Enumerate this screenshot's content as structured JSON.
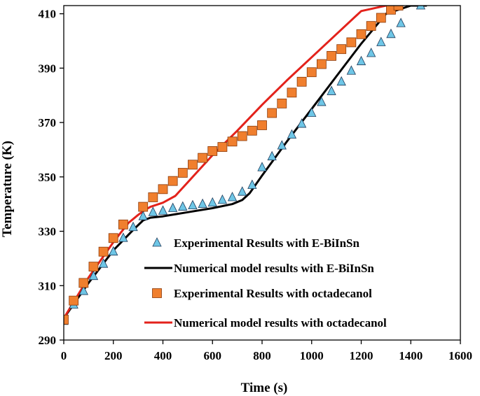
{
  "chart_data": {
    "type": "line",
    "title": "",
    "xlabel": "Time (s)",
    "ylabel": "Temperature (K)",
    "xlim": [
      0,
      1600
    ],
    "ylim": [
      290,
      413
    ],
    "xticks": [
      0,
      200,
      400,
      600,
      800,
      1000,
      1200,
      1400,
      1600
    ],
    "yticks": [
      290,
      310,
      330,
      350,
      370,
      390,
      410
    ],
    "grid": false,
    "legend_position": "center-right inside plot",
    "series": [
      {
        "name": "Experimental Results with E-BiInSn",
        "kind": "scatter",
        "marker": "triangle",
        "color": "#6EC6E6",
        "x": [
          0,
          40,
          80,
          120,
          160,
          200,
          240,
          280,
          320,
          360,
          400,
          440,
          480,
          520,
          560,
          600,
          640,
          680,
          720,
          760,
          800,
          840,
          880,
          920,
          960,
          1000,
          1040,
          1080,
          1120,
          1160,
          1200,
          1240,
          1280,
          1320,
          1360,
          1440
        ],
        "y": [
          297,
          303,
          308,
          313.5,
          318,
          322.5,
          327.5,
          331.5,
          335.5,
          337,
          337.5,
          338.5,
          339,
          339.5,
          340,
          340.5,
          341.5,
          342.5,
          344.5,
          347,
          353.5,
          357.5,
          361.5,
          365.5,
          369.5,
          373.5,
          377.5,
          381.5,
          385,
          389,
          392.5,
          395.5,
          399.5,
          402.5,
          406.5,
          413
        ]
      },
      {
        "name": "Numerical model results with E-BiInSn",
        "kind": "line",
        "color": "#000000",
        "x": [
          0,
          100,
          200,
          280,
          320,
          350,
          400,
          500,
          600,
          680,
          720,
          750,
          800,
          900,
          1000,
          1100,
          1200,
          1300,
          1400,
          1465
        ],
        "y": [
          298,
          311,
          323,
          330.5,
          334,
          335,
          335.5,
          337,
          338.5,
          340,
          341.5,
          344,
          350.5,
          363,
          375,
          387,
          399,
          410,
          413,
          413
        ]
      },
      {
        "name": "Experimental Results with octadecanol",
        "kind": "scatter",
        "marker": "square",
        "color": "#F07F2E",
        "x": [
          0,
          40,
          80,
          120,
          160,
          200,
          240,
          320,
          360,
          400,
          440,
          480,
          520,
          560,
          600,
          640,
          680,
          720,
          760,
          800,
          840,
          880,
          920,
          960,
          1000,
          1040,
          1080,
          1120,
          1160,
          1200,
          1240,
          1280,
          1320,
          1350
        ],
        "y": [
          297.5,
          304.5,
          311,
          317,
          322.5,
          327.5,
          332.5,
          339,
          342.5,
          345.5,
          348.5,
          351.5,
          354.5,
          357,
          359.5,
          361,
          363,
          365,
          367,
          369,
          373.5,
          377,
          381,
          385,
          388.5,
          391.5,
          394.5,
          397,
          399.5,
          402.5,
          405.5,
          408.5,
          411.5,
          413
        ]
      },
      {
        "name": "Numerical model results with octadecanol",
        "kind": "line",
        "color": "#E3221B",
        "x": [
          0,
          100,
          200,
          260,
          300,
          330,
          350,
          400,
          450,
          500,
          600,
          700,
          800,
          900,
          1000,
          1100,
          1200,
          1300,
          1330
        ],
        "y": [
          298,
          313,
          326,
          333,
          336,
          338,
          339,
          340.5,
          343,
          348,
          358,
          367,
          376.5,
          385.5,
          394,
          402.5,
          411,
          413,
          413
        ]
      }
    ]
  }
}
